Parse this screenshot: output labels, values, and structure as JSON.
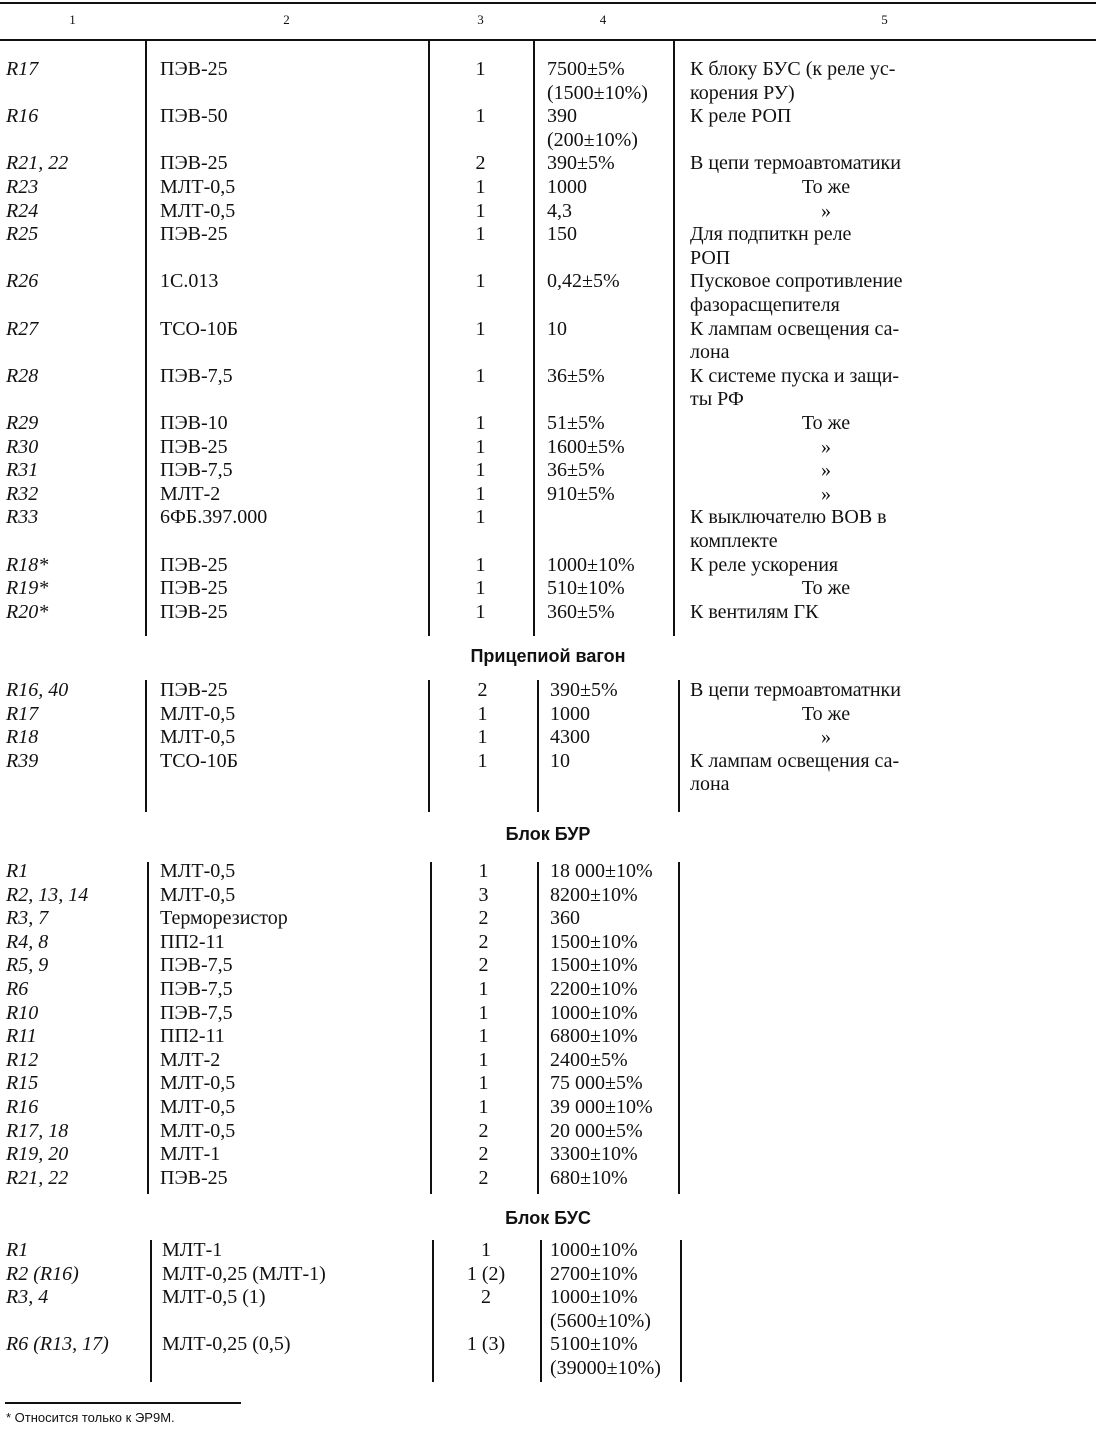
{
  "header": [
    "1",
    "2",
    "3",
    "4",
    "5"
  ],
  "main": {
    "rows": [
      [
        "R17",
        "ПЭВ-25",
        "1",
        "7500±5%\n(1500±10%)",
        "К блоку БУС (к реле ус-\nкорения РУ)"
      ],
      [
        "R16",
        "ПЭВ-50",
        "1",
        "390\n(200±10%)",
        "К реле РОП"
      ],
      [
        "R21, 22",
        "ПЭВ-25",
        "2",
        "390±5%",
        "В цепи термоавтоматики"
      ],
      [
        "R23",
        "МЛТ-0,5",
        "1",
        "1000",
        "То же"
      ],
      [
        "R24",
        "МЛТ-0,5",
        "1",
        "4,3",
        "»"
      ],
      [
        "R25",
        "ПЭВ-25",
        "1",
        "150",
        "Для подпиткн реле\nРОП"
      ],
      [
        "R26",
        "1С.013",
        "1",
        "0,42±5%",
        "Пусковое сопротивление\nфазорасщепителя"
      ],
      [
        "R27",
        "ТСО-10Б",
        "1",
        "10",
        "К лампам освещения са-\nлона"
      ],
      [
        "R28",
        "ПЭВ-7,5",
        "1",
        "36±5%",
        "К системе пуска и защи-\nты РФ"
      ],
      [
        "R29",
        "ПЭВ-10",
        "1",
        "51±5%",
        "То же"
      ],
      [
        "R30",
        "ПЭВ-25",
        "1",
        "1600±5%",
        "»"
      ],
      [
        "R31",
        "ПЭВ-7,5",
        "1",
        "36±5%",
        "»"
      ],
      [
        "R32",
        "МЛТ-2",
        "1",
        "910±5%",
        "»"
      ],
      [
        "R33",
        "6ФБ.397.000",
        "1",
        "",
        "К выключателю ВОВ в\nкомплекте"
      ],
      [
        "R18*",
        "ПЭВ-25",
        "1",
        "1000±10%",
        "К реле ускорения"
      ],
      [
        "R19*",
        "ПЭВ-25",
        "1",
        "510±10%",
        "То же"
      ],
      [
        "R20*",
        "ПЭВ-25",
        "1",
        "360±5%",
        "К вентилям ГК"
      ]
    ]
  },
  "trailer": {
    "title": "Прицепиой вагон",
    "rows": [
      [
        "R16, 40",
        "ПЭВ-25",
        "2",
        "390±5%",
        "В цепи термоавтоматнки"
      ],
      [
        "R17",
        "МЛТ-0,5",
        "1",
        "1000",
        "То же"
      ],
      [
        "R18",
        "МЛТ-0,5",
        "1",
        "4300",
        "»"
      ],
      [
        "R39",
        "ТСО-10Б",
        "1",
        "10",
        "К лампам освещения са-\nлона"
      ]
    ]
  },
  "bur": {
    "title": "Блок БУР",
    "rows": [
      [
        "R1",
        "МЛТ-0,5",
        "1",
        "18 000±10%"
      ],
      [
        "R2, 13, 14",
        "МЛТ-0,5",
        "3",
        "8200±10%"
      ],
      [
        "R3, 7",
        "Терморезистор",
        "2",
        "360"
      ],
      [
        "R4, 8",
        "ПП2-11",
        "2",
        "1500±10%"
      ],
      [
        "R5, 9",
        "ПЭВ-7,5",
        "2",
        "1500±10%"
      ],
      [
        "R6",
        "ПЭВ-7,5",
        "1",
        "2200±10%"
      ],
      [
        "R10",
        "ПЭВ-7,5",
        "1",
        "1000±10%"
      ],
      [
        "R11",
        "ПП2-11",
        "1",
        "6800±10%"
      ],
      [
        "R12",
        "МЛТ-2",
        "1",
        "2400±5%"
      ],
      [
        "R15",
        "МЛТ-0,5",
        "1",
        "75 000±5%"
      ],
      [
        "R16",
        "МЛТ-0,5",
        "1",
        "39 000±10%"
      ],
      [
        "R17, 18",
        "МЛТ-0,5",
        "2",
        "20 000±5%"
      ],
      [
        "R19, 20",
        "МЛТ-1",
        "2",
        "3300±10%"
      ],
      [
        "R21, 22",
        "ПЭВ-25",
        "2",
        "680±10%"
      ]
    ]
  },
  "bus": {
    "title": "Блок БУС",
    "rows": [
      [
        "R1",
        "МЛТ-1",
        "1",
        "1000±10%"
      ],
      [
        "R2 (R16)",
        "МЛТ-0,25 (МЛТ-1)",
        "1 (2)",
        "2700±10%"
      ],
      [
        "R3, 4",
        "МЛТ-0,5 (1)",
        "2",
        "1000±10%\n(5600±10%)"
      ],
      [
        "R6 (R13, 17)",
        "МЛТ-0,25 (0,5)",
        "1 (3)",
        "5100±10%\n(39000±10%)"
      ]
    ]
  },
  "footnote": "* Относится только к ЭР9М."
}
